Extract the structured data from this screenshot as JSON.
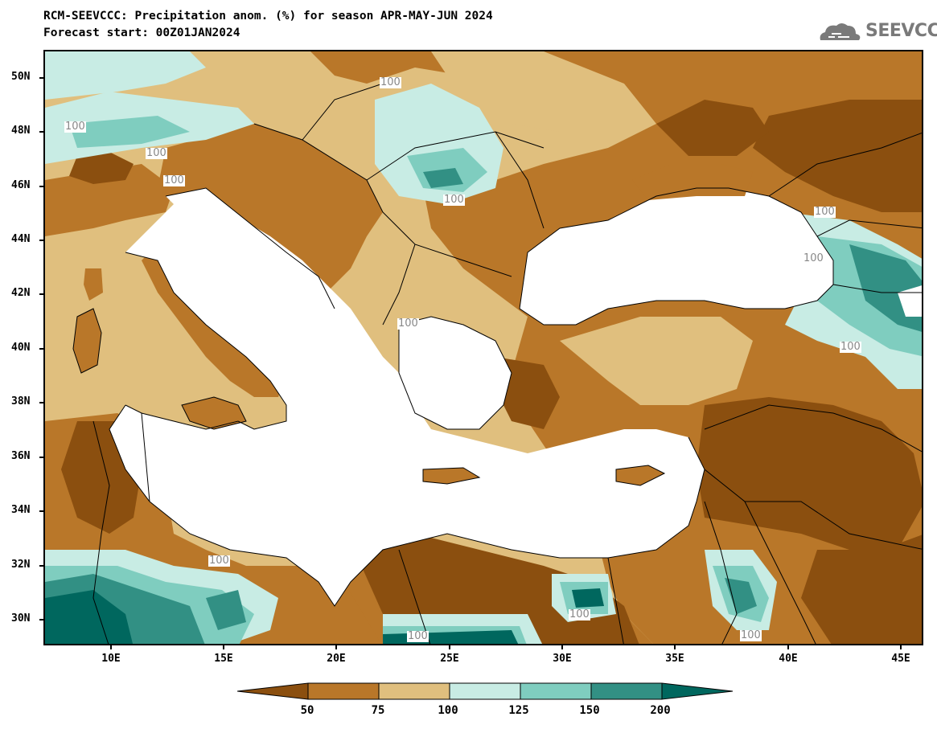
{
  "header": {
    "title_line_1": "RCM-SEEVCCC: Precipitation anom. (%) for season APR-MAY-JUN 2024",
    "title_line_2": "Forecast start: 00Z01JAN2024",
    "logo_text": "SEEVCCC"
  },
  "axes": {
    "lat_labels": [
      "50N",
      "48N",
      "46N",
      "44N",
      "42N",
      "40N",
      "38N",
      "36N",
      "34N",
      "32N",
      "30N"
    ],
    "lon_labels": [
      "10E",
      "15E",
      "20E",
      "25E",
      "30E",
      "35E",
      "40E",
      "45E"
    ]
  },
  "contour_labels": [
    "100",
    "100",
    "100",
    "100",
    "100",
    "100",
    "100",
    "100",
    "100",
    "100",
    "100",
    "100",
    "100",
    "100"
  ],
  "legend": {
    "labels": [
      "50",
      "75",
      "100",
      "125",
      "150",
      "200"
    ],
    "colors": [
      "#8b4f0f",
      "#b97729",
      "#e0bf7e",
      "#c8ece4",
      "#7fcdbf",
      "#329084",
      "#00675e"
    ]
  },
  "colors": {
    "sea": "#ffffff",
    "very_dry": "#8b4f0f",
    "dry": "#b97729",
    "near_normal": "#e0bf7e",
    "wet": "#c8ece4",
    "wetter": "#7fcdbf",
    "very_wet": "#329084",
    "extreme_wet": "#00675e"
  },
  "map_features": [
    "black-sea",
    "mediterranean-sea",
    "adriatic-sea",
    "aegean-sea",
    "caspian-sea",
    "crimea",
    "cyprus",
    "crete",
    "sicily",
    "sardinia",
    "corsica"
  ]
}
